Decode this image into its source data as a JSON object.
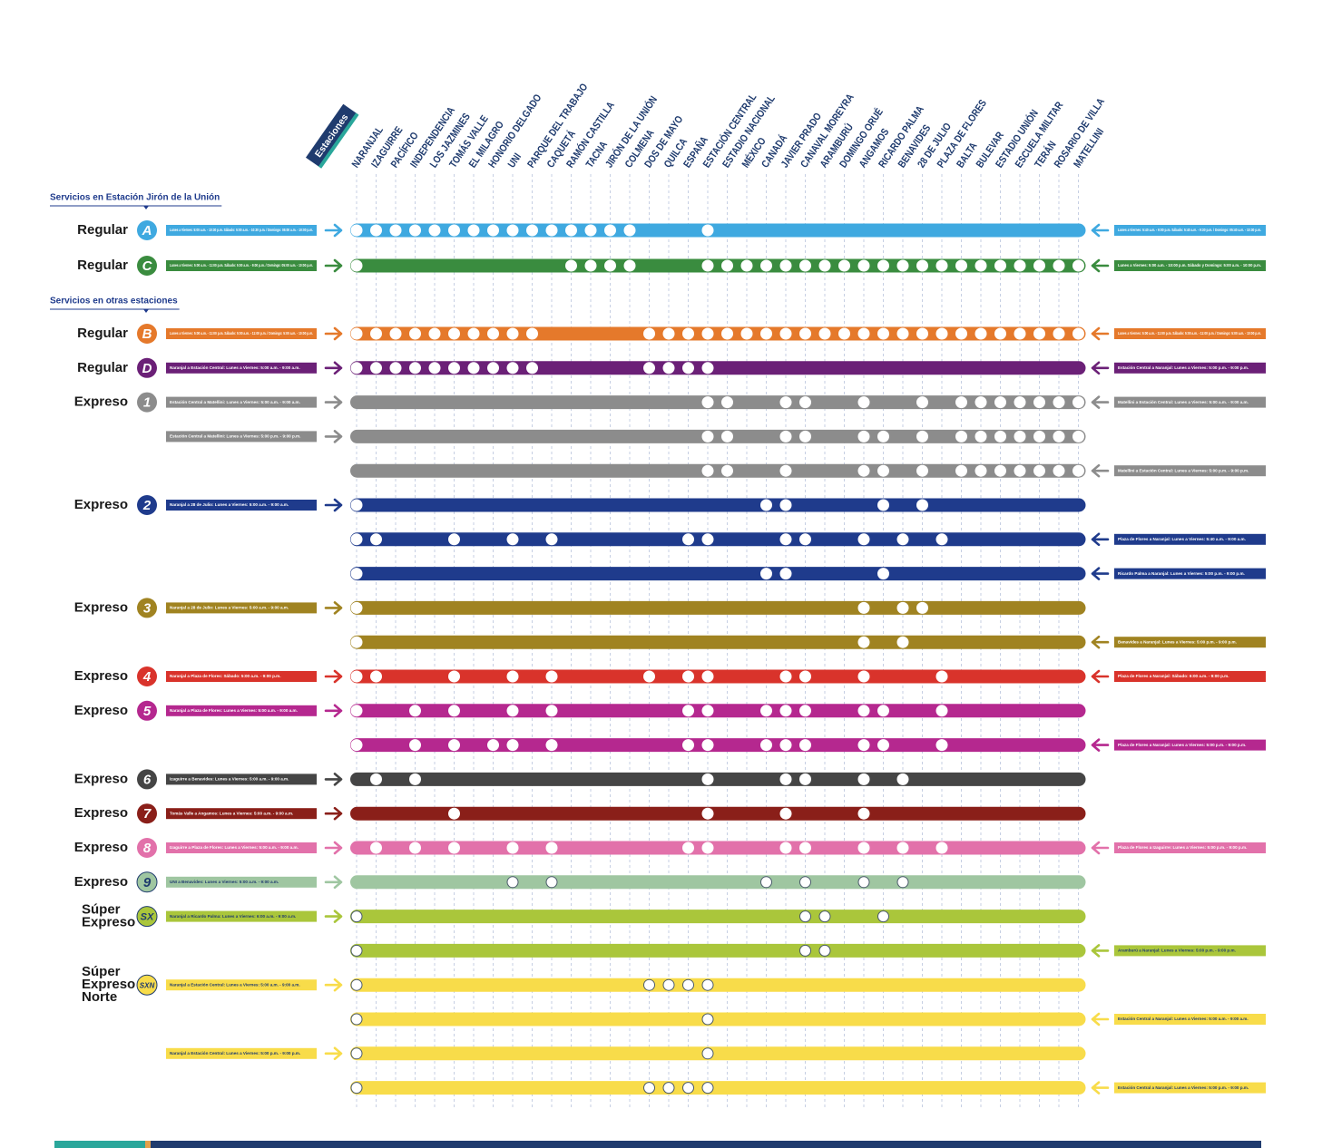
{
  "legend_label": "Estaciones",
  "stations": [
    "NARANJAL",
    "IZAGUIRRE",
    "PACÍFICO",
    "INDEPENDENCIA",
    "LOS JAZMINES",
    "TOMÁS VALLE",
    "EL MILAGRO",
    "HONORIO DELGADO",
    "UNI",
    "PARQUE DEL TRABAJO",
    "CAQUETÁ",
    "RAMÓN CASTILLA",
    "TACNA",
    "JIRÓN DE LA UNIÓN",
    "COLMENA",
    "DOS DE MAYO",
    "QUILCA",
    "ESPAÑA",
    "ESTACIÓN CENTRAL",
    "ESTADIO NACIONAL",
    "MÉXICO",
    "CANADÁ",
    "JAVIER PRADO",
    "CANAVAL MOREYRA",
    "ARAMBURÚ",
    "DOMINGO ORUÉ",
    "ANGAMOS",
    "RICARDO PALMA",
    "BENAVIDES",
    "28 DE JULIO",
    "PLAZA DE FLORES",
    "BALTA",
    "BULEVAR",
    "ESTADIO UNIÓN",
    "ESCUELA MILITAR",
    "TERÁN",
    "ROSARIO DE VILLA",
    "MATELLINI"
  ],
  "sections": [
    {
      "title": "Servicios en Estación Jirón de la Unión",
      "services": [
        {
          "label": [
            "Regular"
          ],
          "badge": "A",
          "color": "#3fa9e0",
          "ink": "#ffffff",
          "badge_ink": "#ffffff",
          "dot_stroke": "#ffffff",
          "rows": [
            {
              "stops": [
                0,
                1,
                2,
                3,
                4,
                5,
                6,
                7,
                8,
                9,
                10,
                11,
                12,
                13,
                14,
                18
              ],
              "left_text": "Lunes a Viernes: 5:00 a.m. - 10:30 p.m. Sábado: 5:00 a.m. - 10:30 p.m. / Domingo: 05:00 a.m. - 10:00 p.m.",
              "right_text": "Lunes a Viernes: 5:40 a.m. - 9:00 p.m. Sábado: 5:40 a.m. - 9:30 p.m. / Domingo: 05:40 a.m. - 10:30 p.m."
            }
          ]
        },
        {
          "label": [
            "Regular"
          ],
          "badge": "C",
          "color": "#3a8c3f",
          "ink": "#ffffff",
          "badge_ink": "#ffffff",
          "dot_stroke": "#ffffff",
          "rows": [
            {
              "stops": [
                0,
                11,
                12,
                13,
                14,
                18,
                19,
                20,
                21,
                22,
                23,
                24,
                25,
                26,
                27,
                28,
                29,
                30,
                31,
                32,
                33,
                34,
                35,
                36,
                37
              ],
              "left_text": "Lunes a Viernes: 5:00 a.m. - 11:00 p.m. Sábado: 5:00 a.m. - 9:00 p.m. / Domingo: 05:00 a.m. - 10:00 p.m.",
              "right_text": "Lunes a Viernes: 5:00 a.m. - 10:00 p.m. Sábado y Domingo: 5:00 a.m. - 10:00 p.m."
            }
          ]
        }
      ]
    },
    {
      "title": "Servicios en otras estaciones",
      "services": [
        {
          "label": [
            "Regular"
          ],
          "badge": "B",
          "color": "#e5792b",
          "ink": "#ffffff",
          "badge_ink": "#ffffff",
          "dot_stroke": "#ffffff",
          "rows": [
            {
              "stops": [
                0,
                1,
                2,
                3,
                4,
                5,
                6,
                7,
                8,
                9,
                15,
                16,
                17,
                18,
                19,
                20,
                21,
                22,
                23,
                24,
                25,
                26,
                27,
                28,
                29,
                30,
                31,
                32,
                33,
                34,
                35,
                36,
                37
              ],
              "left_text": "Lunes a Viernes: 5:00 a.m. - 11:00 p.m. Sábado: 5:00 a.m. - 11:00 p.m. / Domingo: 5:00 a.m. - 10:00 p.m.",
              "right_text": "Lunes a Viernes: 5:00 a.m. - 11:00 p.m. Sábado: 5:00 a.m. - 11:00 p.m. / Domingo: 5:00 a.m. - 10:00 p.m."
            }
          ]
        },
        {
          "label": [
            "Regular"
          ],
          "badge": "D",
          "color": "#6b2077",
          "ink": "#ffffff",
          "badge_ink": "#ffffff",
          "dot_stroke": "#ffffff",
          "rows": [
            {
              "stops": [
                0,
                1,
                2,
                3,
                4,
                5,
                6,
                7,
                8,
                9,
                15,
                16,
                17,
                18
              ],
              "left_text": "Naranjal a Estación Central: Lunes a Viernes: 5:00 a.m. - 9:00 a.m.",
              "right_text": "Estación Central a Naranjal: Lunes a Viernes: 5:00 p.m. - 9:00 p.m."
            }
          ]
        },
        {
          "label": [
            "Expreso"
          ],
          "badge": "1",
          "color": "#8c8c8c",
          "ink": "#ffffff",
          "badge_ink": "#ffffff",
          "dot_stroke": "#ffffff",
          "rows": [
            {
              "stops": [
                18,
                19,
                22,
                23,
                26,
                29,
                31,
                32,
                33,
                34,
                35,
                36,
                37
              ],
              "left_text": "Estación Central a Matellini: Lunes a Viernes: 5:00 a.m. - 9:00 a.m.",
              "right_text": "Matellini a Estación Central: Lunes a Viernes: 5:00 a.m. - 9:00 a.m."
            },
            {
              "stops": [
                18,
                19,
                22,
                23,
                26,
                27,
                29,
                31,
                32,
                33,
                34,
                35,
                36,
                37
              ],
              "left_text": "Estación Central a Matellini: Lunes a Viernes: 5:00 p.m. - 9:00 p.m."
            },
            {
              "stops": [
                18,
                19,
                22,
                26,
                27,
                29,
                31,
                32,
                33,
                34,
                35,
                36,
                37
              ],
              "right_text": "Matellini a Estación Central: Lunes a Viernes: 5:00 p.m. - 9:00 p.m."
            }
          ]
        },
        {
          "label": [
            "Expreso"
          ],
          "badge": "2",
          "color": "#1f3b8c",
          "ink": "#ffffff",
          "badge_ink": "#ffffff",
          "dot_stroke": "#ffffff",
          "rows": [
            {
              "stops": [
                0,
                21,
                22,
                27,
                29
              ],
              "left_text": "Naranjal a 28 de Julio: Lunes a Viernes: 5:00 a.m. - 9:00 a.m."
            },
            {
              "stops": [
                0,
                1,
                5,
                8,
                10,
                17,
                18,
                22,
                23,
                26,
                28,
                30
              ],
              "right_text": "Plaza de Flores a Naranjal: Lunes a Viernes: 5:40 a.m. - 9:00 a.m."
            },
            {
              "stops": [
                0,
                21,
                22,
                27
              ],
              "right_text": "Ricardo Palma a Naranjal: Lunes a Viernes: 5:00 p.m. - 9:00 p.m."
            }
          ]
        },
        {
          "label": [
            "Expreso"
          ],
          "badge": "3",
          "color": "#a08321",
          "ink": "#ffffff",
          "badge_ink": "#ffffff",
          "dot_stroke": "#ffffff",
          "rows": [
            {
              "stops": [
                0,
                26,
                28,
                29
              ],
              "left_text": "Naranjal a 28 de Julio: Lunes a Viernes: 5:00 a.m. - 9:00 a.m."
            },
            {
              "stops": [
                0,
                26,
                28
              ],
              "right_text": "Benavides a Naranjal: Lunes a Viernes: 5:00 p.m. - 9:00 p.m."
            }
          ]
        },
        {
          "label": [
            "Expreso"
          ],
          "badge": "4",
          "color": "#d9332b",
          "ink": "#ffffff",
          "badge_ink": "#ffffff",
          "dot_stroke": "#ffffff",
          "rows": [
            {
              "stops": [
                0,
                1,
                5,
                8,
                10,
                15,
                17,
                18,
                22,
                23,
                26,
                30
              ],
              "left_text": "Naranjal a Plaza de Flores: Sábado: 5:00 a.m. - 9:00 p.m.",
              "right_text": "Plaza de Flores a Naranjal: Sábado: 6:00 a.m. - 9:00 p.m."
            }
          ]
        },
        {
          "label": [
            "Expreso"
          ],
          "badge": "5",
          "color": "#b5288f",
          "ink": "#ffffff",
          "badge_ink": "#ffffff",
          "dot_stroke": "#ffffff",
          "rows": [
            {
              "stops": [
                0,
                3,
                5,
                8,
                10,
                17,
                18,
                21,
                22,
                23,
                26,
                27,
                30
              ],
              "left_text": "Naranjal a Plaza de Flores: Lunes a Viernes: 5:00 a.m. - 9:00 a.m."
            },
            {
              "stops": [
                0,
                3,
                5,
                7,
                8,
                10,
                17,
                18,
                21,
                22,
                23,
                26,
                27,
                30
              ],
              "right_text": "Plaza de Flores a Naranjal: Lunes a Viernes: 5:00 p.m. - 9:00 p.m."
            }
          ]
        },
        {
          "label": [
            "Expreso"
          ],
          "badge": "6",
          "color": "#454545",
          "ink": "#ffffff",
          "badge_ink": "#ffffff",
          "dot_stroke": "#ffffff",
          "rows": [
            {
              "stops": [
                1,
                3,
                18,
                22,
                23,
                26,
                28
              ],
              "left_text": "Izaguirre a Benavides: Lunes a Viernes: 5:00 a.m. - 9:00 a.m."
            }
          ]
        },
        {
          "label": [
            "Expreso"
          ],
          "badge": "7",
          "color": "#8a1f19",
          "ink": "#ffffff",
          "badge_ink": "#ffffff",
          "dot_stroke": "#ffffff",
          "rows": [
            {
              "stops": [
                5,
                18,
                22,
                26
              ],
              "left_text": "Tomás Valle a Angamos: Lunes a Viernes: 5:00 a.m. - 9:00 a.m."
            }
          ]
        },
        {
          "label": [
            "Expreso"
          ],
          "badge": "8",
          "color": "#e271aa",
          "ink": "#ffffff",
          "badge_ink": "#ffffff",
          "dot_stroke": "#ffffff",
          "rows": [
            {
              "stops": [
                1,
                3,
                5,
                8,
                10,
                17,
                18,
                22,
                23,
                26,
                28,
                30
              ],
              "left_text": "Izaguirre a Plaza de Flores: Lunes a Viernes: 5:00 a.m. - 9:00 a.m.",
              "right_text": "Plaza de Flores a Izaguirre: Lunes a Viernes: 5:00 p.m. - 9:00 p.m."
            }
          ]
        },
        {
          "label": [
            "Expreso"
          ],
          "badge": "9",
          "color": "#9fc6a1",
          "ink": "#1f3b6e",
          "badge_ink": "#1f3b6e",
          "dot_stroke": "#4a5a6a",
          "rows": [
            {
              "stops": [
                8,
                10,
                21,
                23,
                26,
                28
              ],
              "left_text": "UNI a Benavides: Lunes a Viernes: 5:00 a.m. - 9:00 a.m."
            }
          ]
        },
        {
          "label": [
            "Súper",
            "Expreso"
          ],
          "badge": "SX",
          "color": "#aac63b",
          "ink": "#1f3b6e",
          "badge_ink": "#1f3b6e",
          "dot_stroke": "#4a5a6a",
          "rows": [
            {
              "stops": [
                0,
                23,
                24,
                27
              ],
              "left_text": "Naranjal a Ricardo Palma: Lunes a Viernes: 6:00 a.m. - 9:00 a.m."
            },
            {
              "stops": [
                0,
                23,
                24
              ],
              "right_text": "Aramburú a Naranjal: Lunes a Viernes: 5:00 p.m. - 9:00 p.m."
            }
          ]
        },
        {
          "label": [
            "Súper",
            "Expreso",
            "Norte"
          ],
          "badge": "SXN",
          "color": "#f8dc4a",
          "ink": "#1f3b6e",
          "badge_ink": "#1f3b6e",
          "dot_stroke": "#4a5a6a",
          "rows": [
            {
              "stops": [
                0,
                15,
                16,
                17,
                18
              ],
              "left_text": "Naranjal a Estación Central: Lunes a Viernes: 5:00 a.m. - 9:00 a.m."
            },
            {
              "stops": [
                0,
                18
              ],
              "right_text": "Estación Central a Naranjal: Lunes a Viernes: 5:00 a.m. - 9:00 a.m."
            },
            {
              "stops": [
                0,
                18
              ],
              "left_text": "Naranjal a Estación Central: Lunes a Viernes: 5:00 p.m. - 9:00 p.m."
            },
            {
              "stops": [
                0,
                15,
                16,
                17,
                18
              ],
              "right_text": "Estación Central a Naranjal: Lunes a Viernes: 5:00 p.m. - 9:00 p.m."
            }
          ]
        }
      ]
    }
  ]
}
